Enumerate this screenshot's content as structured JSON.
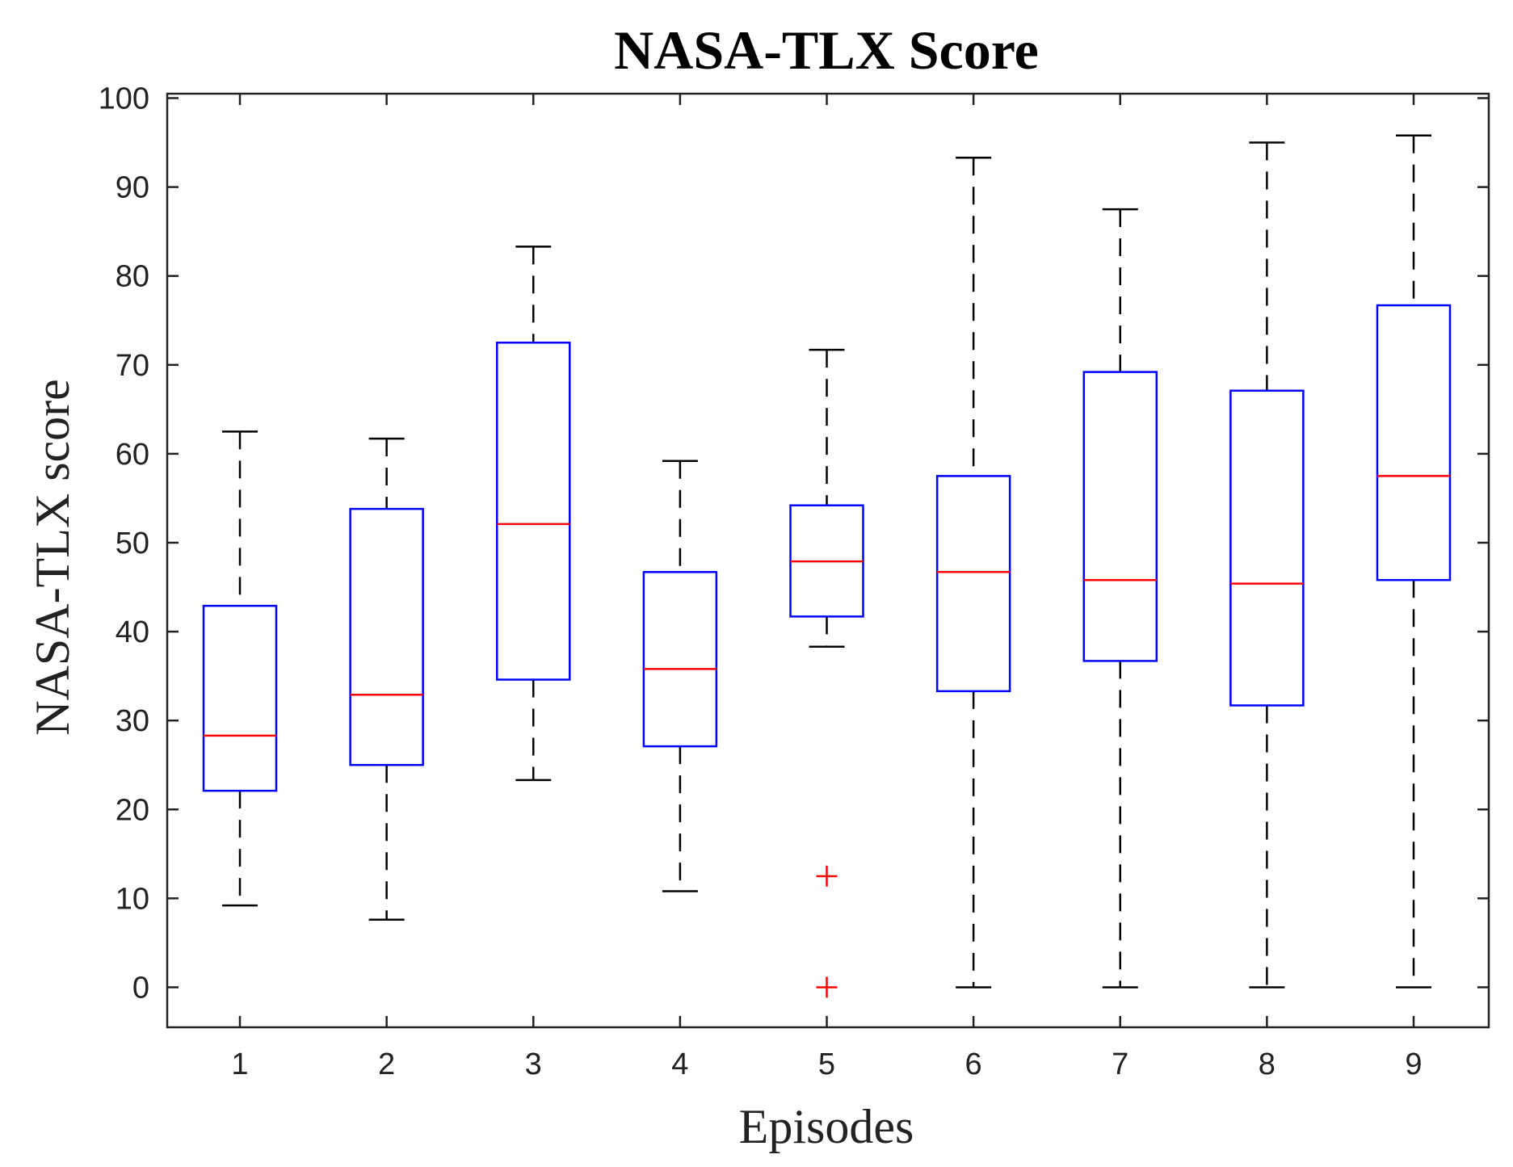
{
  "chart_data": {
    "type": "boxplot",
    "title": "NASA-TLX Score",
    "xlabel": "Episodes",
    "ylabel": "NASA-TLX score",
    "categories": [
      "1",
      "2",
      "3",
      "4",
      "5",
      "6",
      "7",
      "8",
      "9"
    ],
    "y_ticks": [
      "0",
      "10",
      "20",
      "30",
      "40",
      "50",
      "60",
      "70",
      "80",
      "90",
      "100"
    ],
    "ylim": [
      -4.5,
      100.5
    ],
    "grid": false,
    "boxes": [
      {
        "category": "1",
        "whisker_low": 9.2,
        "q1": 22.1,
        "median": 28.3,
        "q3": 42.9,
        "whisker_high": 62.5,
        "outliers": []
      },
      {
        "category": "2",
        "whisker_low": 7.6,
        "q1": 25.0,
        "median": 32.9,
        "q3": 53.8,
        "whisker_high": 61.7,
        "outliers": []
      },
      {
        "category": "3",
        "whisker_low": 23.3,
        "q1": 34.6,
        "median": 52.1,
        "q3": 72.5,
        "whisker_high": 83.3,
        "outliers": []
      },
      {
        "category": "4",
        "whisker_low": 10.8,
        "q1": 27.1,
        "median": 35.8,
        "q3": 46.7,
        "whisker_high": 59.2,
        "outliers": []
      },
      {
        "category": "5",
        "whisker_low": 38.3,
        "q1": 41.7,
        "median": 47.9,
        "q3": 54.2,
        "whisker_high": 71.7,
        "outliers": [
          12.5,
          0
        ]
      },
      {
        "category": "6",
        "whisker_low": 0,
        "q1": 33.3,
        "median": 46.7,
        "q3": 57.5,
        "whisker_high": 93.3,
        "outliers": []
      },
      {
        "category": "7",
        "whisker_low": 0,
        "q1": 36.7,
        "median": 45.8,
        "q3": 69.2,
        "whisker_high": 87.5,
        "outliers": []
      },
      {
        "category": "8",
        "whisker_low": 0,
        "q1": 31.7,
        "median": 45.4,
        "q3": 67.1,
        "whisker_high": 95.0,
        "outliers": []
      },
      {
        "category": "9",
        "whisker_low": 0,
        "q1": 45.8,
        "median": 57.5,
        "q3": 76.7,
        "whisker_high": 95.8,
        "outliers": []
      }
    ],
    "colors": {
      "box": "#0000ff",
      "median": "#ff0000",
      "whisker": "#000000",
      "outlier": "#ff0000"
    }
  }
}
